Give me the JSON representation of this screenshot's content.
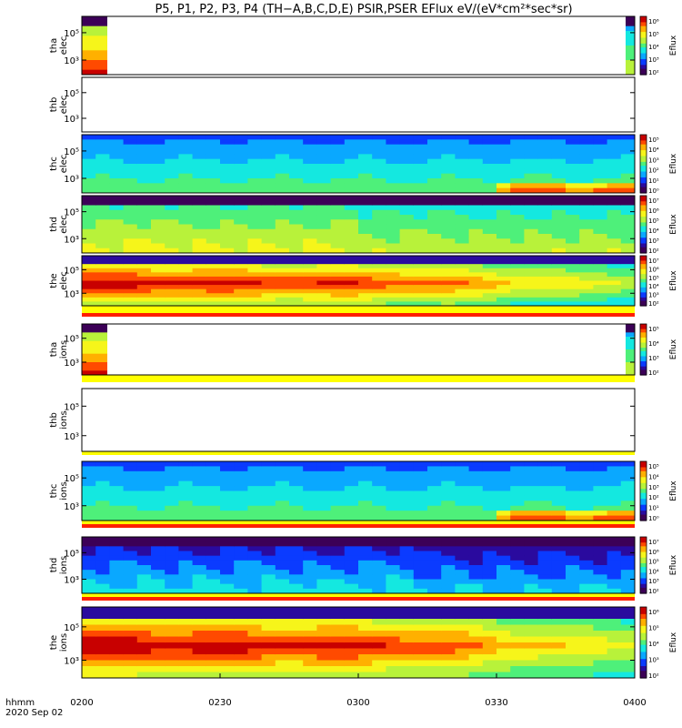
{
  "title": "P5, P1, P2, P3, P4 (TH−A,B,C,D,E) PSIR,PSER EFlux eV/(eV*cm²*sec*sr)",
  "time_axis": {
    "ticks": [
      "0200",
      "0230",
      "0300",
      "0330",
      "0400"
    ],
    "label_line1": "hhmm",
    "label_line2": "2020 Sep 02"
  },
  "colorbar_label": "Eflux",
  "chart_data": {
    "type": "heatmap",
    "x_unit": "hhmm",
    "x_range": [
      "0200",
      "0400"
    ],
    "panels": [
      {
        "id": "tha-elec",
        "probe": "tha",
        "species": "elec",
        "y_ticks": [
          "10³",
          "10⁵"
        ],
        "colorbar_ticks": [
          "10²",
          "10³",
          "10⁴",
          "10⁵",
          "10⁶"
        ],
        "coverage": "start-end"
      },
      {
        "id": "thb-elec",
        "probe": "thb",
        "species": "elec",
        "y_ticks": [
          "10³",
          "10⁵"
        ],
        "colorbar_ticks": [],
        "coverage": "none"
      },
      {
        "id": "thc-elec",
        "probe": "thc",
        "species": "elec",
        "y_ticks": [
          "10³",
          "10⁵"
        ],
        "colorbar_ticks": [
          "10⁰",
          "10¹",
          "10²",
          "10³",
          "10⁴",
          "10⁵"
        ],
        "coverage": "full"
      },
      {
        "id": "thd-elec",
        "probe": "thd",
        "species": "elec",
        "y_ticks": [
          "10³",
          "10⁵"
        ],
        "colorbar_ticks": [
          "10²",
          "10³",
          "10⁴",
          "10⁵",
          "10⁶",
          "10⁷"
        ],
        "coverage": "full"
      },
      {
        "id": "the-elec",
        "probe": "the",
        "species": "elec",
        "y_ticks": [
          "10³",
          "10⁵"
        ],
        "colorbar_ticks": [
          "10²",
          "10³",
          "10⁴",
          "10⁵",
          "10⁶",
          "10⁷"
        ],
        "coverage": "full"
      },
      {
        "id": "tha-ions",
        "probe": "tha",
        "species": "ions",
        "y_ticks": [
          "10³",
          "10⁵"
        ],
        "colorbar_ticks": [
          "10²",
          "10³",
          "10⁴",
          "10⁵"
        ],
        "coverage": "start-end"
      },
      {
        "id": "thb-ions",
        "probe": "thb",
        "species": "ions",
        "y_ticks": [
          "10³",
          "10⁵"
        ],
        "colorbar_ticks": [],
        "coverage": "none"
      },
      {
        "id": "thc-ions",
        "probe": "thc",
        "species": "ions",
        "y_ticks": [
          "10³",
          "10⁵"
        ],
        "colorbar_ticks": [
          "10⁰",
          "10¹",
          "10²",
          "10³",
          "10⁴",
          "10⁵"
        ],
        "coverage": "full"
      },
      {
        "id": "thd-ions",
        "probe": "thd",
        "species": "ions",
        "y_ticks": [
          "10³",
          "10⁵"
        ],
        "colorbar_ticks": [
          "10²",
          "10³",
          "10⁴",
          "10⁵",
          "10⁶",
          "10⁷"
        ],
        "coverage": "full"
      },
      {
        "id": "the-ions",
        "probe": "the",
        "species": "ions",
        "y_ticks": [
          "10³",
          "10⁵"
        ],
        "colorbar_ticks": [
          "10²",
          "10³",
          "10⁴",
          "10⁵",
          "10⁶"
        ],
        "coverage": "full"
      }
    ],
    "colormap": [
      "#3c0057",
      "#2a0a9e",
      "#0b3bff",
      "#0aa8ff",
      "#14e8e0",
      "#4ef07a",
      "#b8f23a",
      "#f6f51a",
      "#ffb000",
      "#ff4a00",
      "#c80000"
    ]
  }
}
